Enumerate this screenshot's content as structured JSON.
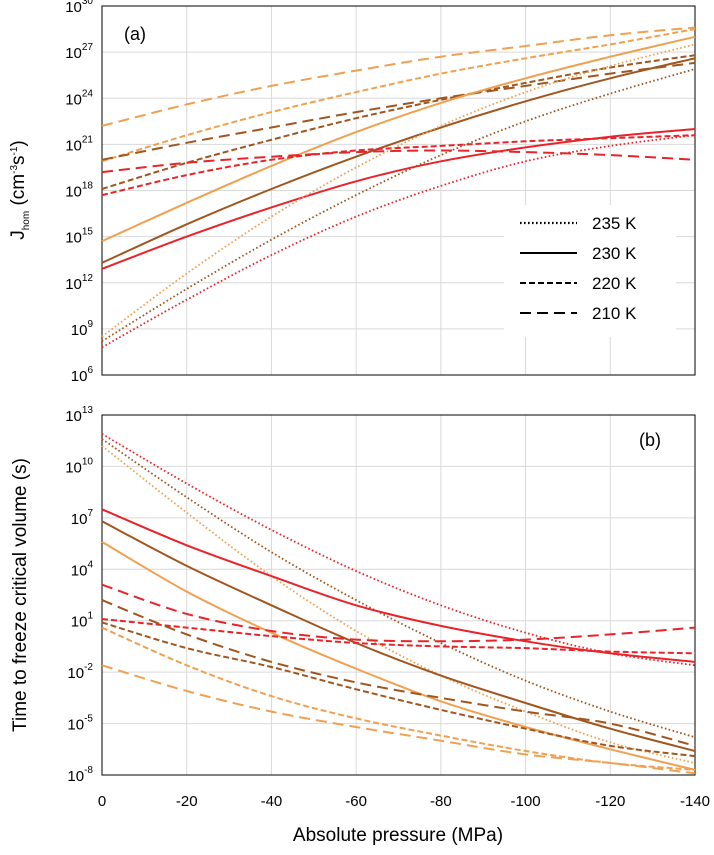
{
  "figure": {
    "xlabel": "Absolute pressure (MPa)",
    "x_ticks": [
      0,
      -20,
      -40,
      -60,
      -80,
      -100,
      -120,
      -140
    ],
    "x_tick_labels": [
      "0",
      "-20",
      "-40",
      "-60",
      "-80",
      "-100",
      "-120",
      "-140"
    ]
  },
  "colors": {
    "Cr": "#e8242a",
    "Cb": "#a0561e",
    "Co": "#f0a050"
  },
  "legend": [
    {
      "label": "235 K",
      "dash": "dotted"
    },
    {
      "label": "230 K",
      "dash": "solid"
    },
    {
      "label": "220 K",
      "dash": "short-dash"
    },
    {
      "label": "210 K",
      "dash": "long-dash"
    }
  ],
  "chart_data": [
    {
      "type": "line",
      "panel_label": "(a)",
      "ylabel_main": "J",
      "ylabel_sub": "hom",
      "ylabel_rest": " (cm",
      "ylabel_exp1": "-3",
      "ylabel_mid": "s",
      "ylabel_exp2": "-1",
      "ylabel_end": ")",
      "yscale": "log",
      "xlim": [
        0,
        -140
      ],
      "ylim_exponent": [
        6,
        30
      ],
      "y_tick_exponents": [
        6,
        9,
        12,
        15,
        18,
        21,
        24,
        27,
        30
      ],
      "grid": true,
      "legend_position": "right",
      "x": [
        0,
        -20,
        -40,
        -60,
        -80,
        -100,
        -120,
        -140
      ],
      "series": [
        {
          "color": "Co",
          "dash": "long-dash",
          "log10_values": [
            22.2,
            23.6,
            24.8,
            25.8,
            26.7,
            27.4,
            28.1,
            28.6
          ]
        },
        {
          "color": "Co",
          "dash": "short-dash",
          "log10_values": [
            19.9,
            21.6,
            23.1,
            24.4,
            25.6,
            26.6,
            27.5,
            28.5
          ]
        },
        {
          "color": "Cb",
          "dash": "short-dash",
          "log10_values": [
            18.1,
            19.8,
            21.3,
            22.7,
            23.9,
            25.0,
            26.0,
            26.8
          ]
        },
        {
          "color": "Cb",
          "dash": "long-dash",
          "log10_values": [
            20.0,
            21.1,
            22.1,
            23.1,
            24.0,
            24.8,
            25.6,
            26.3
          ]
        },
        {
          "color": "Co",
          "dash": "solid",
          "log10_values": [
            14.7,
            17.2,
            19.6,
            21.8,
            23.7,
            25.3,
            26.7,
            28.0
          ]
        },
        {
          "color": "Cb",
          "dash": "solid",
          "log10_values": [
            13.3,
            15.8,
            18.1,
            20.2,
            22.1,
            23.8,
            25.3,
            26.6
          ]
        },
        {
          "color": "Cr",
          "dash": "short-dash",
          "log10_values": [
            17.7,
            19.0,
            20.0,
            20.6,
            20.9,
            21.2,
            21.4,
            21.6
          ]
        },
        {
          "color": "Cr",
          "dash": "long-dash",
          "log10_values": [
            19.2,
            19.8,
            20.2,
            20.5,
            20.6,
            20.5,
            20.3,
            20.0
          ]
        },
        {
          "color": "Cr",
          "dash": "solid",
          "log10_values": [
            12.9,
            15.0,
            16.9,
            18.6,
            19.9,
            20.8,
            21.5,
            22.0
          ]
        },
        {
          "color": "Co",
          "dash": "dotted",
          "log10_values": [
            8.5,
            12.6,
            16.3,
            19.5,
            22.2,
            24.4,
            26.1,
            27.5
          ]
        },
        {
          "color": "Cb",
          "dash": "dotted",
          "log10_values": [
            8.2,
            11.6,
            14.8,
            17.7,
            20.3,
            22.5,
            24.3,
            25.9
          ]
        },
        {
          "color": "Cr",
          "dash": "dotted",
          "log10_values": [
            7.8,
            10.9,
            13.8,
            16.3,
            18.3,
            19.9,
            20.9,
            21.6
          ]
        }
      ]
    },
    {
      "type": "line",
      "panel_label": "(b)",
      "ylabel": "Time to freeze critical volume (s)",
      "yscale": "log",
      "xlim": [
        0,
        -140
      ],
      "ylim_exponent": [
        -8,
        13
      ],
      "y_tick_exponents": [
        -8,
        -5,
        -2,
        1,
        4,
        7,
        10,
        13
      ],
      "grid": true,
      "x": [
        0,
        -20,
        -40,
        -60,
        -80,
        -100,
        -120,
        -140
      ],
      "series": [
        {
          "color": "Cr",
          "dash": "dotted",
          "log10_values": [
            11.9,
            9.0,
            6.3,
            3.9,
            1.9,
            0.3,
            -0.9,
            -1.6
          ]
        },
        {
          "color": "Cb",
          "dash": "dotted",
          "log10_values": [
            11.6,
            8.2,
            5.0,
            2.2,
            -0.3,
            -2.5,
            -4.3,
            -5.8
          ]
        },
        {
          "color": "Co",
          "dash": "dotted",
          "log10_values": [
            11.2,
            7.3,
            3.6,
            0.4,
            -2.2,
            -4.3,
            -6.1,
            -7.3
          ]
        },
        {
          "color": "Cr",
          "dash": "solid",
          "log10_values": [
            7.5,
            5.4,
            3.6,
            1.9,
            0.7,
            -0.2,
            -0.9,
            -1.4
          ]
        },
        {
          "color": "Cb",
          "dash": "solid",
          "log10_values": [
            6.8,
            4.2,
            1.9,
            -0.3,
            -2.2,
            -3.8,
            -5.3,
            -6.6
          ]
        },
        {
          "color": "Co",
          "dash": "solid",
          "log10_values": [
            5.6,
            2.7,
            0.3,
            -1.8,
            -3.7,
            -5.2,
            -6.5,
            -7.7
          ]
        },
        {
          "color": "Cr",
          "dash": "short-dash",
          "log10_values": [
            1.1,
            0.6,
            0.1,
            -0.3,
            -0.5,
            -0.6,
            -0.8,
            -0.9
          ]
        },
        {
          "color": "Cr",
          "dash": "long-dash",
          "log10_values": [
            3.1,
            1.4,
            0.4,
            -0.1,
            -0.2,
            -0.1,
            0.2,
            0.6
          ]
        },
        {
          "color": "Cb",
          "dash": "long-dash",
          "log10_values": [
            2.2,
            0.2,
            -1.4,
            -2.6,
            -3.5,
            -4.3,
            -5.0,
            -6.3
          ]
        },
        {
          "color": "Cb",
          "dash": "short-dash",
          "log10_values": [
            0.9,
            -0.6,
            -1.7,
            -3.0,
            -4.2,
            -5.3,
            -6.3,
            -6.9
          ]
        },
        {
          "color": "Co",
          "dash": "short-dash",
          "log10_values": [
            0.6,
            -1.6,
            -3.4,
            -4.7,
            -5.7,
            -6.6,
            -7.3,
            -7.7
          ]
        },
        {
          "color": "Co",
          "dash": "long-dash",
          "log10_values": [
            -1.6,
            -3.1,
            -4.3,
            -5.2,
            -6.0,
            -6.8,
            -7.3,
            -7.9
          ]
        }
      ]
    }
  ]
}
